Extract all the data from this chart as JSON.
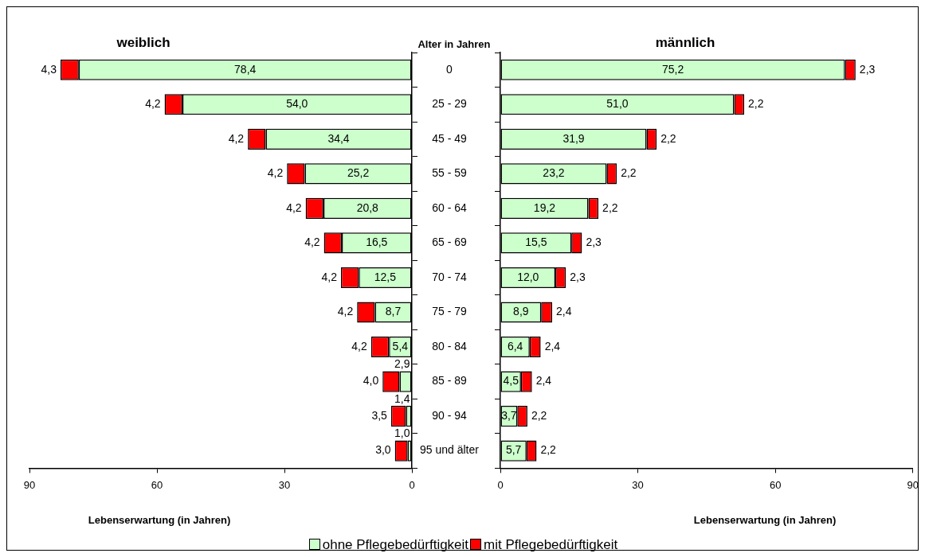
{
  "chart_data": [
    {
      "type": "bar",
      "orientation": "horizontal",
      "stacked": true,
      "title": "weiblich",
      "ylabel": "Alter in Jahren",
      "xlabel": "Lebenserwartung (in Jahren)",
      "categories": [
        "0",
        "25 - 29",
        "45 - 49",
        "55 - 59",
        "60 - 64",
        "65 - 69",
        "70 - 74",
        "75 - 79",
        "80 - 84",
        "85 - 89",
        "90 - 94",
        "95 und älter"
      ],
      "series": [
        {
          "name": "ohne Pflegebedürftigkeit",
          "color": "#ccffcc",
          "values": [
            78.4,
            54.0,
            34.4,
            25.2,
            20.8,
            16.5,
            12.5,
            8.7,
            5.4,
            2.9,
            1.4,
            1.0
          ],
          "value_labels": [
            "78,4",
            "54,0",
            "34,4",
            "25,2",
            "20,8",
            "16,5",
            "12,5",
            "8,7",
            "5,4",
            "2,9",
            "1,4",
            "1,0"
          ]
        },
        {
          "name": "mit Pflegebedürftigkeit",
          "color": "#ff0000",
          "values": [
            4.3,
            4.2,
            4.2,
            4.2,
            4.2,
            4.2,
            4.2,
            4.2,
            4.2,
            4.0,
            3.5,
            3.0
          ],
          "value_labels": [
            "4,3",
            "4,2",
            "4,2",
            "4,2",
            "4,2",
            "4,2",
            "4,2",
            "4,2",
            "4,2",
            "4,0",
            "3,5",
            "3,0"
          ]
        }
      ],
      "xlim": [
        90,
        0
      ],
      "xticks": [
        90,
        60,
        30,
        0
      ],
      "grid": false,
      "legend": "bottom"
    },
    {
      "type": "bar",
      "orientation": "horizontal",
      "stacked": true,
      "title": "männlich",
      "xlabel": "Lebenserwartung (in Jahren)",
      "categories": [
        "0",
        "25 - 29",
        "45 - 49",
        "55 - 59",
        "60 - 64",
        "65 - 69",
        "70 - 74",
        "75 - 79",
        "80 - 84",
        "85 - 89",
        "90 - 94",
        "95 und älter"
      ],
      "series": [
        {
          "name": "ohne Pflegebedürftigkeit",
          "color": "#ccffcc",
          "values": [
            75.2,
            51.0,
            31.9,
            23.2,
            19.2,
            15.5,
            12.0,
            8.9,
            6.4,
            4.5,
            3.7,
            5.7
          ],
          "value_labels": [
            "75,2",
            "51,0",
            "31,9",
            "23,2",
            "19,2",
            "15,5",
            "12,0",
            "8,9",
            "6,4",
            "4,5",
            "3,7",
            "5,7"
          ]
        },
        {
          "name": "mit Pflegebedürftigkeit",
          "color": "#ff0000",
          "values": [
            2.3,
            2.2,
            2.2,
            2.2,
            2.2,
            2.3,
            2.3,
            2.4,
            2.4,
            2.4,
            2.2,
            2.2
          ],
          "value_labels": [
            "2,3",
            "2,2",
            "2,2",
            "2,2",
            "2,2",
            "2,3",
            "2,3",
            "2,4",
            "2,4",
            "2,4",
            "2,2",
            "2,2"
          ]
        }
      ],
      "xlim": [
        0,
        90
      ],
      "xticks": [
        0,
        30,
        60,
        90
      ],
      "grid": false,
      "legend": "bottom",
      "tick_labels": "x"
    }
  ]
}
